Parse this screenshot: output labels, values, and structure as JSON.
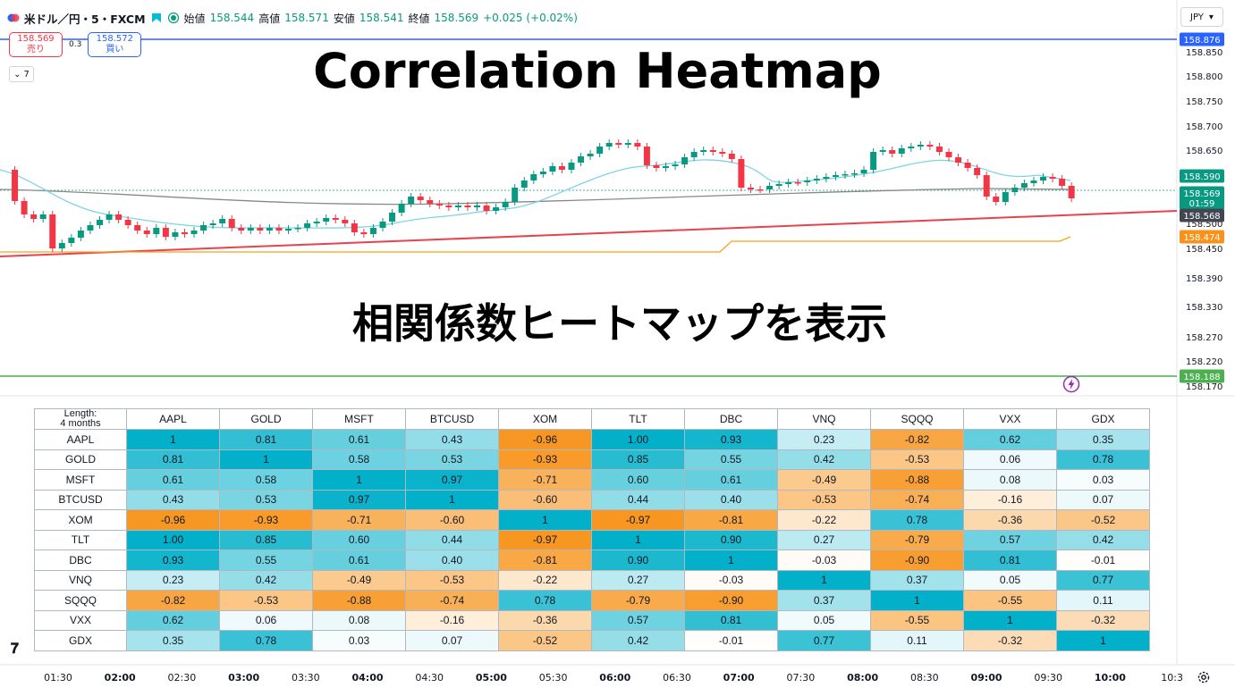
{
  "header": {
    "symbol": "米ドル／円・5・FXCM",
    "open_label": "始値",
    "open": "158.544",
    "high_label": "高値",
    "high": "158.571",
    "low_label": "安値",
    "low": "158.541",
    "close_label": "終値",
    "close": "158.569",
    "change": "+0.025 (+0.02%)"
  },
  "trade": {
    "sell_price": "158.569",
    "sell_label": "売り",
    "spread": "0.3",
    "buy_price": "158.572",
    "buy_label": "買い"
  },
  "indicators_count": "7",
  "currency": "JPY",
  "overlay": {
    "title_en": "Correlation Heatmap",
    "title_jp": "相関係数ヒートマップを表示"
  },
  "price_axis": {
    "ticks": [
      "158.850",
      "158.800",
      "158.750",
      "158.700",
      "158.650",
      "158.500",
      "158.450",
      "158.390",
      "158.330",
      "158.270",
      "158.220",
      "158.170"
    ],
    "labels": [
      {
        "text": "158.876",
        "color": "#2962ff"
      },
      {
        "text": "158.590",
        "color": "#089981"
      },
      {
        "text": "158.569",
        "sub": "01:59",
        "color": "#089981"
      },
      {
        "text": "158.568",
        "color": "#434651"
      },
      {
        "text": "158.474",
        "color": "#f7931a"
      },
      {
        "text": "158.188",
        "color": "#4caf50"
      }
    ]
  },
  "time_axis": [
    {
      "t": "01:30",
      "b": false
    },
    {
      "t": "02:00",
      "b": true
    },
    {
      "t": "02:30",
      "b": false
    },
    {
      "t": "03:00",
      "b": true
    },
    {
      "t": "03:30",
      "b": false
    },
    {
      "t": "04:00",
      "b": true
    },
    {
      "t": "04:30",
      "b": false
    },
    {
      "t": "05:00",
      "b": true
    },
    {
      "t": "05:30",
      "b": false
    },
    {
      "t": "06:00",
      "b": true
    },
    {
      "t": "06:30",
      "b": false
    },
    {
      "t": "07:00",
      "b": true
    },
    {
      "t": "07:30",
      "b": false
    },
    {
      "t": "08:00",
      "b": true
    },
    {
      "t": "08:30",
      "b": false
    },
    {
      "t": "09:00",
      "b": true
    },
    {
      "t": "09:30",
      "b": false
    },
    {
      "t": "10:00",
      "b": true
    },
    {
      "t": "10:3",
      "b": false
    }
  ],
  "colors": {
    "up": "#089981",
    "down": "#f23645",
    "ma_fast": "#7fd3e6",
    "ma_slow": "#888888",
    "trend": "#e8424f",
    "orange": "#f7a21b",
    "blue_line": "#2962ff",
    "green_line": "#4caf50"
  },
  "heatmap": {
    "corner_line1": "Length:",
    "corner_line2": "4 months",
    "columns": [
      "AAPL",
      "GOLD",
      "MSFT",
      "BTCUSD",
      "XOM",
      "TLT",
      "DBC",
      "VNQ",
      "SQQQ",
      "VXX",
      "GDX"
    ],
    "rows": [
      {
        "label": "AAPL",
        "cells": [
          "1",
          "0.81",
          "0.61",
          "0.43",
          "-0.96",
          "1.00",
          "0.93",
          "0.23",
          "-0.82",
          "0.62",
          "0.35"
        ]
      },
      {
        "label": "GOLD",
        "cells": [
          "0.81",
          "1",
          "0.58",
          "0.53",
          "-0.93",
          "0.85",
          "0.55",
          "0.42",
          "-0.53",
          "0.06",
          "0.78"
        ]
      },
      {
        "label": "MSFT",
        "cells": [
          "0.61",
          "0.58",
          "1",
          "0.97",
          "-0.71",
          "0.60",
          "0.61",
          "-0.49",
          "-0.88",
          "0.08",
          "0.03"
        ]
      },
      {
        "label": "BTCUSD",
        "cells": [
          "0.43",
          "0.53",
          "0.97",
          "1",
          "-0.60",
          "0.44",
          "0.40",
          "-0.53",
          "-0.74",
          "-0.16",
          "0.07"
        ]
      },
      {
        "label": "XOM",
        "cells": [
          "-0.96",
          "-0.93",
          "-0.71",
          "-0.60",
          "1",
          "-0.97",
          "-0.81",
          "-0.22",
          "0.78",
          "-0.36",
          "-0.52"
        ]
      },
      {
        "label": "TLT",
        "cells": [
          "1.00",
          "0.85",
          "0.60",
          "0.44",
          "-0.97",
          "1",
          "0.90",
          "0.27",
          "-0.79",
          "0.57",
          "0.42"
        ]
      },
      {
        "label": "DBC",
        "cells": [
          "0.93",
          "0.55",
          "0.61",
          "0.40",
          "-0.81",
          "0.90",
          "1",
          "-0.03",
          "-0.90",
          "0.81",
          "-0.01"
        ]
      },
      {
        "label": "VNQ",
        "cells": [
          "0.23",
          "0.42",
          "-0.49",
          "-0.53",
          "-0.22",
          "0.27",
          "-0.03",
          "1",
          "0.37",
          "0.05",
          "0.77"
        ]
      },
      {
        "label": "SQQQ",
        "cells": [
          "-0.82",
          "-0.53",
          "-0.88",
          "-0.74",
          "0.78",
          "-0.79",
          "-0.90",
          "0.37",
          "1",
          "-0.55",
          "0.11"
        ]
      },
      {
        "label": "VXX",
        "cells": [
          "0.62",
          "0.06",
          "0.08",
          "-0.16",
          "-0.36",
          "0.57",
          "0.81",
          "0.05",
          "-0.55",
          "1",
          "-0.32"
        ]
      },
      {
        "label": "GDX",
        "cells": [
          "0.35",
          "0.78",
          "0.03",
          "0.07",
          "-0.52",
          "0.42",
          "-0.01",
          "0.77",
          "0.11",
          "-0.32",
          "1"
        ]
      }
    ]
  }
}
